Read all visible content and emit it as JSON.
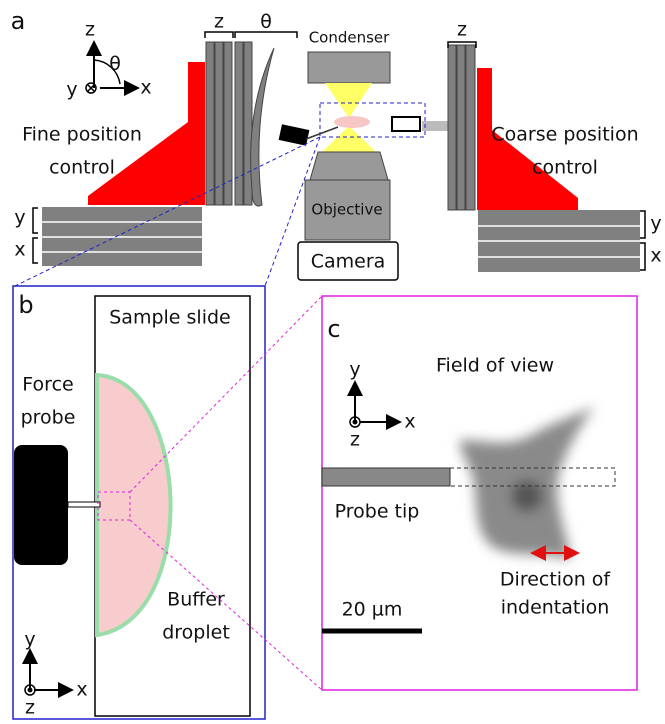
{
  "panel_a": {
    "label": "a",
    "axes": {
      "z": "z",
      "theta": "θ",
      "y": "y",
      "x": "x"
    },
    "stage_labels": {
      "z_left": "z",
      "theta": "θ",
      "z_right": "z"
    },
    "condenser": "Condenser",
    "objective": "Objective",
    "camera": "Camera",
    "fine_control": [
      "Fine position",
      "control"
    ],
    "coarse_control": [
      "Coarse position",
      "control"
    ],
    "left_stage_axes": [
      "y",
      "x"
    ],
    "right_stage_axes": [
      "y",
      "x"
    ]
  },
  "panel_b": {
    "label": "b",
    "sample_slide": "Sample slide",
    "force_probe": [
      "Force",
      "probe"
    ],
    "buffer_droplet": [
      "Buffer",
      "droplet"
    ],
    "axes": {
      "y": "y",
      "x": "x",
      "z": "z"
    }
  },
  "panel_c": {
    "label": "c",
    "field_of_view": "Field of view",
    "axes": {
      "y": "y",
      "x": "x",
      "z": "z"
    },
    "probe_tip": "Probe tip",
    "direction": [
      "Direction of",
      "indentation"
    ],
    "scale_bar": "20 µm"
  }
}
